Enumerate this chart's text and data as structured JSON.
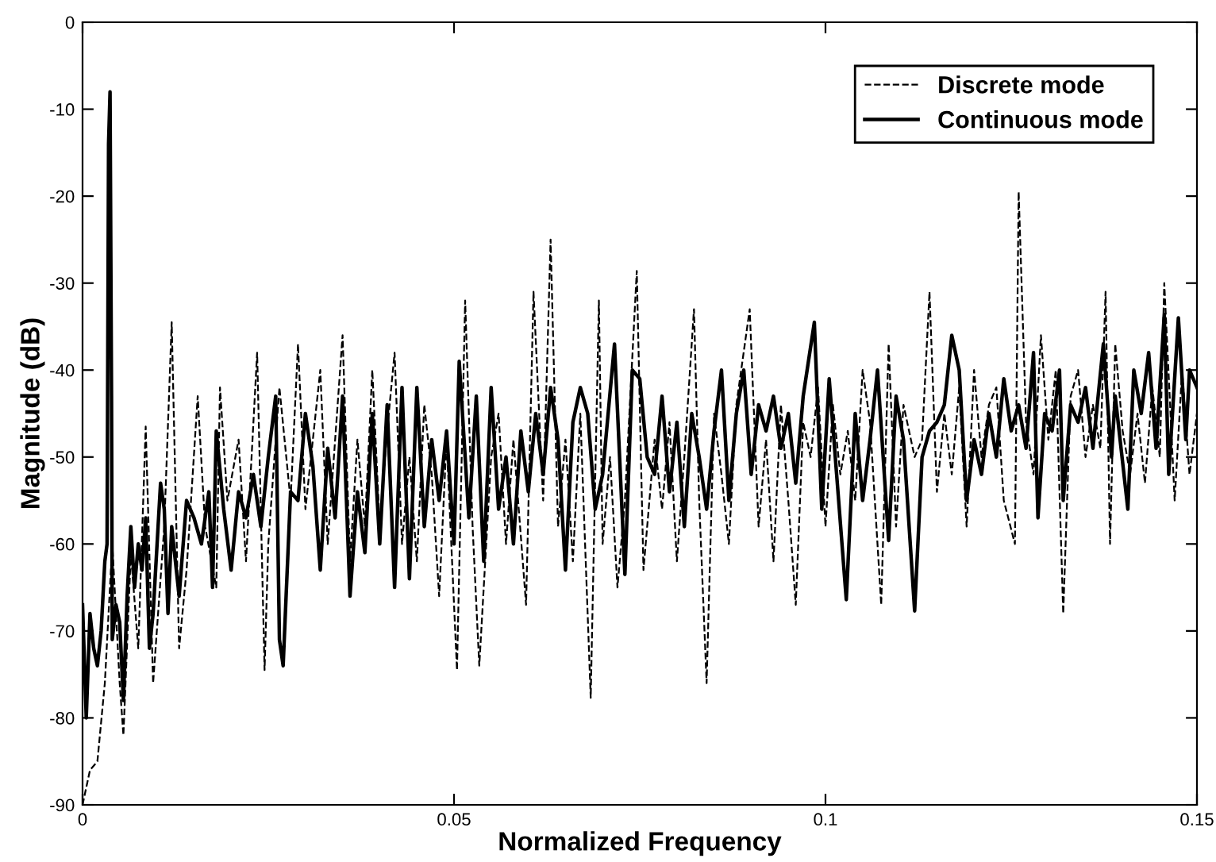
{
  "chart_data": {
    "type": "line",
    "xlabel": "Normalized Frequency",
    "ylabel": "Magnitude (dB)",
    "xlim": [
      0,
      0.15
    ],
    "xticks": [
      0,
      0.05,
      0.1,
      0.15
    ],
    "ylim": [
      -90,
      0
    ],
    "yticks": [
      -90,
      -80,
      -70,
      -60,
      -50,
      -40,
      -30,
      -20,
      -10,
      0
    ],
    "grid": false,
    "legend": "top right",
    "series": [
      {
        "name": "Discrete mode",
        "color": "#000000",
        "line_style": "dashed",
        "x": [
          0,
          0.001,
          0.002,
          0.003,
          0.004,
          0.005,
          0.0055,
          0.0065,
          0.0075,
          0.0085,
          0.0095,
          0.011,
          0.012,
          0.013,
          0.014,
          0.0155,
          0.0165,
          0.018,
          0.0185,
          0.0195,
          0.021,
          0.022,
          0.0235,
          0.0245,
          0.025,
          0.0265,
          0.028,
          0.029,
          0.03,
          0.032,
          0.033,
          0.034,
          0.035,
          0.036,
          0.037,
          0.038,
          0.039,
          0.04,
          0.041,
          0.042,
          0.043,
          0.044,
          0.045,
          0.046,
          0.047,
          0.048,
          0.049,
          0.0504,
          0.0515,
          0.0525,
          0.0534,
          0.055,
          0.056,
          0.057,
          0.058,
          0.0597,
          0.0607,
          0.062,
          0.063,
          0.064,
          0.065,
          0.066,
          0.067,
          0.0684,
          0.0695,
          0.07,
          0.071,
          0.072,
          0.073,
          0.0746,
          0.0755,
          0.077,
          0.078,
          0.079,
          0.08,
          0.081,
          0.0823,
          0.083,
          0.084,
          0.085,
          0.086,
          0.087,
          0.088,
          0.0898,
          0.091,
          0.092,
          0.093,
          0.094,
          0.095,
          0.096,
          0.097,
          0.098,
          0.099,
          0.1,
          0.101,
          0.102,
          0.103,
          0.104,
          0.105,
          0.106,
          0.1075,
          0.1085,
          0.1095,
          0.1105,
          0.112,
          0.113,
          0.114,
          0.115,
          0.116,
          0.117,
          0.118,
          0.119,
          0.12,
          0.121,
          0.122,
          0.123,
          0.124,
          0.1255,
          0.126,
          0.127,
          0.128,
          0.129,
          0.13,
          0.131,
          0.132,
          0.133,
          0.134,
          0.135,
          0.136,
          0.137,
          0.1377,
          0.1383,
          0.139,
          0.14,
          0.141,
          0.142,
          0.143,
          0.144,
          0.145,
          0.1456,
          0.1465,
          0.147,
          0.148,
          0.149,
          0.15
        ],
        "values": [
          -90,
          -86,
          -85,
          -76,
          -60,
          -76,
          -82,
          -61,
          -72,
          -46.5,
          -76,
          -58,
          -34.5,
          -72,
          -63,
          -43,
          -58,
          -65,
          -42,
          -55,
          -48,
          -62,
          -38,
          -74.5,
          -60,
          -42,
          -55,
          -37,
          -56,
          -40,
          -60,
          -48,
          -36,
          -62,
          -48,
          -58,
          -40,
          -58,
          -47,
          -38,
          -60,
          -50,
          -62,
          -44,
          -52,
          -66,
          -48,
          -74.5,
          -32,
          -58,
          -74,
          -50,
          -45,
          -60,
          -48,
          -67,
          -31,
          -55,
          -25,
          -58,
          -48,
          -62,
          -45,
          -77.7,
          -32,
          -60,
          -50,
          -65,
          -55,
          -28.6,
          -63,
          -48,
          -56,
          -46,
          -62,
          -50,
          -33,
          -55,
          -76,
          -45,
          -52,
          -60,
          -44,
          -33,
          -58,
          -48,
          -62,
          -44,
          -55,
          -67,
          -46,
          -50,
          -42,
          -58,
          -44,
          -52,
          -47,
          -55,
          -40,
          -46,
          -67,
          -37,
          -58,
          -44,
          -50,
          -48,
          -31,
          -54,
          -45,
          -52,
          -42,
          -58,
          -40,
          -50,
          -44,
          -42,
          -55,
          -60,
          -19.5,
          -46,
          -52,
          -36,
          -48,
          -40,
          -68,
          -43,
          -40,
          -50,
          -44,
          -49,
          -31,
          -60,
          -37,
          -47,
          -52,
          -45,
          -53,
          -42,
          -50,
          -30,
          -46,
          -55,
          -40,
          -52,
          -45
        ]
      },
      {
        "name": "Continuous mode",
        "color": "#000000",
        "line_style": "solid",
        "x": [
          0,
          0.0005,
          0.001,
          0.0015,
          0.002,
          0.0025,
          0.003,
          0.0033,
          0.0035,
          0.0037,
          0.0039,
          0.004,
          0.0045,
          0.005,
          0.0055,
          0.006,
          0.0065,
          0.007,
          0.0075,
          0.008,
          0.0085,
          0.009,
          0.0095,
          0.0105,
          0.011,
          0.0115,
          0.012,
          0.013,
          0.014,
          0.015,
          0.016,
          0.017,
          0.0175,
          0.018,
          0.019,
          0.02,
          0.021,
          0.022,
          0.023,
          0.024,
          0.025,
          0.026,
          0.0265,
          0.027,
          0.028,
          0.029,
          0.03,
          0.031,
          0.032,
          0.033,
          0.034,
          0.035,
          0.036,
          0.037,
          0.038,
          0.039,
          0.04,
          0.041,
          0.042,
          0.043,
          0.044,
          0.045,
          0.046,
          0.047,
          0.048,
          0.049,
          0.05,
          0.0507,
          0.0515,
          0.052,
          0.053,
          0.054,
          0.055,
          0.056,
          0.057,
          0.058,
          0.059,
          0.06,
          0.061,
          0.062,
          0.063,
          0.064,
          0.065,
          0.066,
          0.067,
          0.068,
          0.069,
          0.07,
          0.0716,
          0.073,
          0.074,
          0.075,
          0.076,
          0.077,
          0.078,
          0.079,
          0.08,
          0.081,
          0.082,
          0.083,
          0.084,
          0.085,
          0.086,
          0.087,
          0.088,
          0.089,
          0.09,
          0.091,
          0.092,
          0.093,
          0.094,
          0.095,
          0.096,
          0.097,
          0.0985,
          0.0995,
          0.1005,
          0.1015,
          0.1028,
          0.104,
          0.105,
          0.106,
          0.107,
          0.1085,
          0.1095,
          0.1105,
          0.112,
          0.113,
          0.114,
          0.115,
          0.116,
          0.117,
          0.118,
          0.119,
          0.12,
          0.121,
          0.122,
          0.123,
          0.124,
          0.125,
          0.126,
          0.127,
          0.128,
          0.1286,
          0.1295,
          0.1305,
          0.1315,
          0.132,
          0.133,
          0.134,
          0.135,
          0.136,
          0.1374,
          0.1385,
          0.139,
          0.1407,
          0.1415,
          0.1425,
          0.1435,
          0.1445,
          0.1456,
          0.1462,
          0.1475,
          0.1485,
          0.149,
          0.15
        ],
        "values": [
          -67,
          -80,
          -68,
          -72,
          -74,
          -70,
          -62,
          -60,
          -14,
          -8,
          -43,
          -71,
          -67,
          -69,
          -78,
          -66,
          -58,
          -65,
          -60,
          -63,
          -57,
          -72,
          -68,
          -53,
          -56,
          -68,
          -58,
          -66,
          -55,
          -57,
          -60,
          -54,
          -65,
          -47,
          -56,
          -63,
          -54,
          -57,
          -52,
          -58,
          -50,
          -43,
          -71,
          -74,
          -54,
          -55,
          -45,
          -51,
          -63,
          -49,
          -57,
          -43,
          -66,
          -54,
          -61,
          -45,
          -60,
          -44,
          -65,
          -42,
          -64,
          -42,
          -58,
          -48,
          -55,
          -47,
          -60,
          -39,
          -50,
          -57,
          -43,
          -62,
          -42,
          -56,
          -50,
          -60,
          -47,
          -54,
          -45,
          -52,
          -42,
          -48,
          -63,
          -46,
          -42,
          -45,
          -56,
          -52,
          -37,
          -63.5,
          -40,
          -41,
          -50,
          -52,
          -43,
          -54,
          -46,
          -58,
          -45,
          -50,
          -56,
          -47,
          -40,
          -55,
          -45,
          -40,
          -52,
          -44,
          -47,
          -43,
          -49,
          -45,
          -53,
          -43,
          -34.5,
          -56,
          -41,
          -52,
          -66.4,
          -45,
          -55,
          -48,
          -40,
          -59.6,
          -43,
          -48,
          -67.7,
          -50,
          -47,
          -46,
          -44,
          -36,
          -40,
          -55,
          -48,
          -52,
          -45,
          -50,
          -41,
          -47,
          -44,
          -49,
          -38,
          -57,
          -45,
          -47,
          -40,
          -55,
          -44,
          -46,
          -42,
          -49,
          -37,
          -50,
          -43,
          -56,
          -40,
          -45,
          -38,
          -49,
          -33.6,
          -52,
          -34,
          -48,
          -40,
          -42
        ]
      }
    ]
  }
}
